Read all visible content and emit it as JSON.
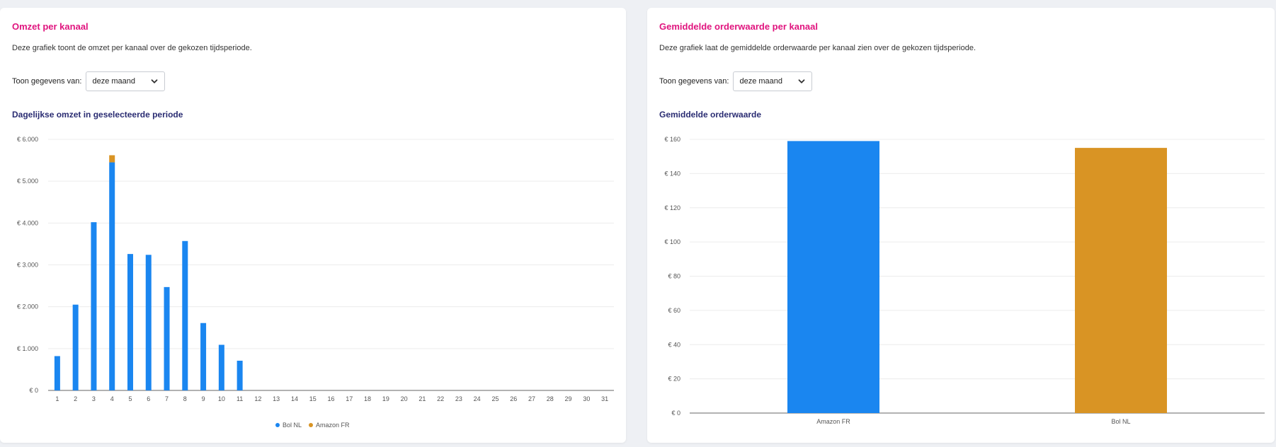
{
  "left_card": {
    "title": "Omzet per kanaal",
    "description": "Deze grafiek toont de omzet per kanaal over de gekozen tijdsperiode.",
    "filter_label": "Toon gegevens van:",
    "filter_value": "deze maand",
    "chart_title": "Dagelijkse omzet in geselecteerde periode"
  },
  "right_card": {
    "title": "Gemiddelde orderwaarde per kanaal",
    "description": "Deze grafiek laat de gemiddelde orderwaarde per kanaal zien over de gekozen tijdsperiode.",
    "filter_label": "Toon gegevens van:",
    "filter_value": "deze maand",
    "chart_title": "Gemiddelde orderwaarde"
  },
  "colors": {
    "blue": "#1a86f0",
    "orange": "#d99424",
    "accent": "#e0147e",
    "navy": "#2a2c72"
  },
  "icons": {
    "select_chevron": "chevron-down-icon"
  },
  "chart_data": [
    {
      "type": "bar",
      "stacked": true,
      "categories": [
        "1",
        "2",
        "3",
        "4",
        "5",
        "6",
        "7",
        "8",
        "9",
        "10",
        "11",
        "12",
        "13",
        "14",
        "15",
        "16",
        "17",
        "18",
        "19",
        "20",
        "21",
        "22",
        "23",
        "24",
        "25",
        "26",
        "27",
        "28",
        "29",
        "30",
        "31"
      ],
      "series": [
        {
          "name": "Bol NL",
          "color": "#1a86f0",
          "values": [
            820,
            2050,
            4020,
            5450,
            3260,
            3240,
            2470,
            3570,
            1610,
            1090,
            710,
            0,
            0,
            0,
            0,
            0,
            0,
            0,
            0,
            0,
            0,
            0,
            0,
            0,
            0,
            0,
            0,
            0,
            0,
            0,
            0
          ]
        },
        {
          "name": "Amazon FR",
          "color": "#d99424",
          "values": [
            0,
            0,
            0,
            170,
            0,
            0,
            0,
            0,
            0,
            0,
            0,
            0,
            0,
            0,
            0,
            0,
            0,
            0,
            0,
            0,
            0,
            0,
            0,
            0,
            0,
            0,
            0,
            0,
            0,
            0,
            0
          ]
        }
      ],
      "ylim": [
        0,
        6000
      ],
      "yticks": [
        0,
        1000,
        2000,
        3000,
        4000,
        5000,
        6000
      ],
      "ytick_labels": [
        "€ 0",
        "€ 1.000",
        "€ 2.000",
        "€ 3.000",
        "€ 4.000",
        "€ 5.000",
        "€ 6.000"
      ],
      "grid": true,
      "legend": "bottom-center"
    },
    {
      "type": "bar",
      "categories": [
        "Amazon FR",
        "Bol NL"
      ],
      "values": [
        159,
        155
      ],
      "colors": [
        "#1a86f0",
        "#d99424"
      ],
      "ylim": [
        0,
        160
      ],
      "yticks": [
        0,
        20,
        40,
        60,
        80,
        100,
        120,
        140,
        160
      ],
      "ytick_labels": [
        "€ 0",
        "€ 20",
        "€ 40",
        "€ 60",
        "€ 80",
        "€ 100",
        "€ 120",
        "€ 140",
        "€ 160"
      ],
      "grid": true
    }
  ]
}
